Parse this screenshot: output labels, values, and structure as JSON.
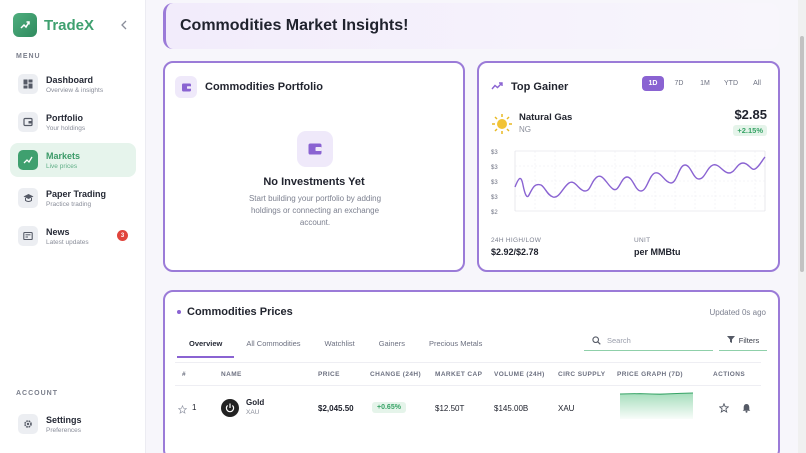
{
  "app": {
    "name": "TradeX"
  },
  "sidebar": {
    "menu_label": "MENU",
    "account_label": "ACCOUNT",
    "items": [
      {
        "title": "Dashboard",
        "subtitle": "Overview & insights"
      },
      {
        "title": "Portfolio",
        "subtitle": "Your holdings"
      },
      {
        "title": "Markets",
        "subtitle": "Live prices"
      },
      {
        "title": "Paper Trading",
        "subtitle": "Practice trading"
      },
      {
        "title": "News",
        "subtitle": "Latest updates",
        "badge": "3"
      }
    ],
    "settings": {
      "title": "Settings",
      "subtitle": "Preferences"
    }
  },
  "banner": {
    "title": "Commodities Market Insights!"
  },
  "portfolio": {
    "title": "Commodities Portfolio",
    "empty_title": "No Investments Yet",
    "empty_desc": "Start building your portfolio by adding holdings or connecting an exchange account."
  },
  "top_gainer": {
    "title": "Top Gainer",
    "periods": [
      "1D",
      "7D",
      "1M",
      "YTD",
      "All"
    ],
    "active_period": "1D",
    "asset_name": "Natural Gas",
    "asset_symbol": "NG",
    "price": "$2.85",
    "change": "+2.15%",
    "high_low_label": "24H HIGH/LOW",
    "high_low_value": "$2.92/$2.78",
    "unit_label": "UNIT",
    "unit_value": "per MMBtu",
    "chart_ticks": [
      "$3",
      "$3",
      "$3",
      "$3",
      "$2"
    ],
    "line_color": "#8a63d2"
  },
  "prices": {
    "title": "Commodities Prices",
    "updated": "Updated 0s ago",
    "tabs": [
      "Overview",
      "All Commodities",
      "Watchlist",
      "Gainers",
      "Precious Metals"
    ],
    "search_placeholder": "Search",
    "filters_label": "Filters",
    "columns": [
      "#",
      "NAME",
      "PRICE",
      "CHANGE (24H)",
      "MARKET CAP",
      "VOLUME (24H)",
      "CIRC SUPPLY",
      "PRICE GRAPH (7D)",
      "ACTIONS"
    ],
    "rows": [
      {
        "rank": "1",
        "name": "Gold",
        "symbol": "XAU",
        "price": "$2,045.50",
        "change": "+0.65%",
        "market_cap": "$12.50T",
        "volume": "$145.00B",
        "supply": "XAU"
      }
    ],
    "accent_color": "#8a63d2",
    "positive_color": "#37a366"
  }
}
